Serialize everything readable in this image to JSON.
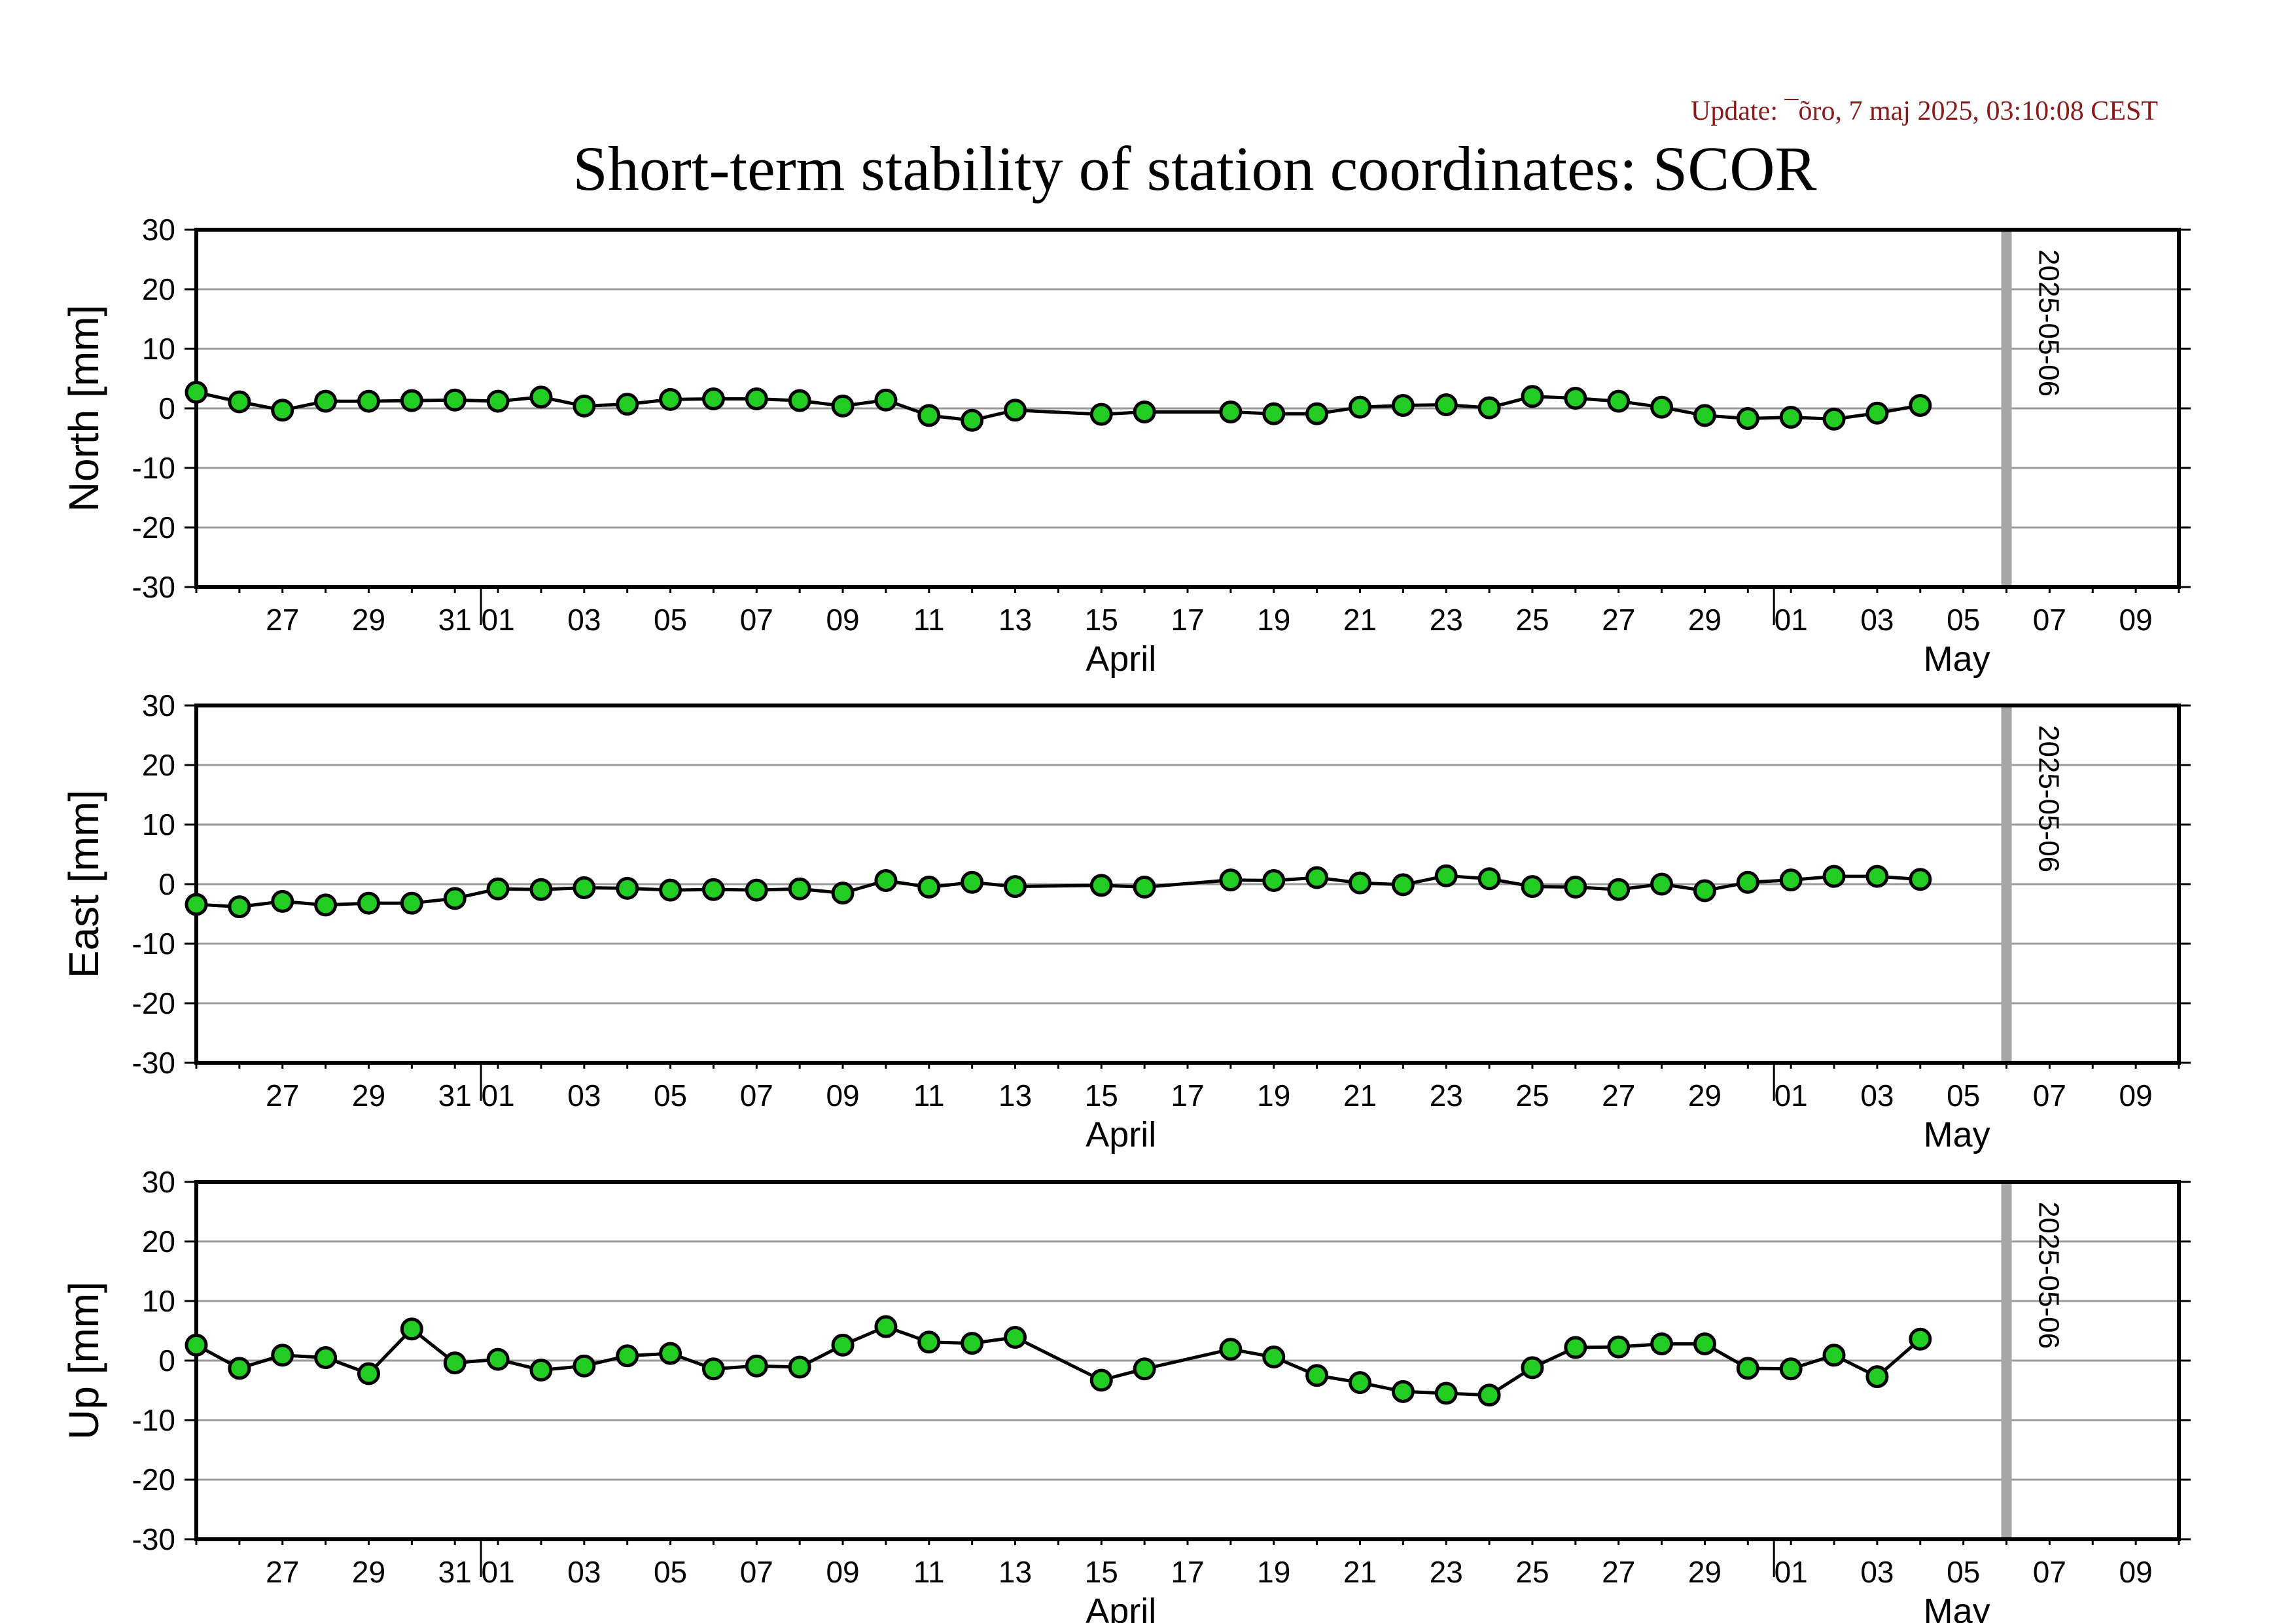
{
  "header": {
    "update_text": "Update: ¯õro, 7 maj 2025, 03:10:08 CEST",
    "title": "Short-term stability of station coordinates: SCOR"
  },
  "colors": {
    "marker_fill": "#22cc22",
    "marker_edge": "#000000",
    "line": "#000000",
    "grid": "#9a9a9a",
    "vline": "#a6a6a6",
    "update_text": "#8b1a1a"
  },
  "axis": {
    "ylim": [
      -30,
      30
    ],
    "yticks": [
      "30",
      "20",
      "10",
      "0",
      "-10",
      "-20",
      "-30"
    ],
    "xlim": [
      "2025-03-25",
      "2025-05-10"
    ],
    "day_ticks": [
      {
        "date": "2025-03-27",
        "label": "27"
      },
      {
        "date": "2025-03-29",
        "label": "29"
      },
      {
        "date": "2025-03-31",
        "label": "31"
      },
      {
        "date": "2025-04-01",
        "label": "01"
      },
      {
        "date": "2025-04-03",
        "label": "03"
      },
      {
        "date": "2025-04-05",
        "label": "05"
      },
      {
        "date": "2025-04-07",
        "label": "07"
      },
      {
        "date": "2025-04-09",
        "label": "09"
      },
      {
        "date": "2025-04-11",
        "label": "11"
      },
      {
        "date": "2025-04-13",
        "label": "13"
      },
      {
        "date": "2025-04-15",
        "label": "15"
      },
      {
        "date": "2025-04-17",
        "label": "17"
      },
      {
        "date": "2025-04-19",
        "label": "19"
      },
      {
        "date": "2025-04-21",
        "label": "21"
      },
      {
        "date": "2025-04-23",
        "label": "23"
      },
      {
        "date": "2025-04-25",
        "label": "25"
      },
      {
        "date": "2025-04-27",
        "label": "27"
      },
      {
        "date": "2025-04-29",
        "label": "29"
      },
      {
        "date": "2025-05-01",
        "label": "01"
      },
      {
        "date": "2025-05-03",
        "label": "03"
      },
      {
        "date": "2025-05-05",
        "label": "05"
      },
      {
        "date": "2025-05-07",
        "label": "07"
      },
      {
        "date": "2025-05-09",
        "label": "09"
      }
    ],
    "month_boundaries": [
      "2025-04-01",
      "2025-05-01"
    ],
    "month_labels": [
      {
        "date": "2025-04-15",
        "label": "April"
      },
      {
        "date": "2025-05-05",
        "label": "May"
      }
    ],
    "marker_line": {
      "date": "2025-05-06",
      "label": "2025-05-06"
    }
  },
  "chart_data": [
    {
      "type": "line",
      "ylabel": "North [mm]",
      "ylim": [
        -30,
        30
      ],
      "grid": true,
      "x": [
        "2025-03-25",
        "2025-03-26",
        "2025-03-27",
        "2025-03-28",
        "2025-03-29",
        "2025-03-30",
        "2025-03-31",
        "2025-04-01",
        "2025-04-02",
        "2025-04-03",
        "2025-04-04",
        "2025-04-05",
        "2025-04-06",
        "2025-04-07",
        "2025-04-08",
        "2025-04-09",
        "2025-04-10",
        "2025-04-11",
        "2025-04-12",
        "2025-04-13",
        "2025-04-15",
        "2025-04-16",
        "2025-04-18",
        "2025-04-19",
        "2025-04-20",
        "2025-04-21",
        "2025-04-22",
        "2025-04-23",
        "2025-04-24",
        "2025-04-25",
        "2025-04-26",
        "2025-04-27",
        "2025-04-28",
        "2025-04-29",
        "2025-04-30",
        "2025-05-01",
        "2025-05-02",
        "2025-05-03",
        "2025-05-04"
      ],
      "values": [
        2.7,
        1.1,
        -0.3,
        1.2,
        1.2,
        1.3,
        1.4,
        1.2,
        1.9,
        0.4,
        0.7,
        1.5,
        1.6,
        1.6,
        1.3,
        0.4,
        1.4,
        -1.2,
        -2.0,
        -0.3,
        -1.0,
        -0.6,
        -0.6,
        -0.9,
        -0.9,
        0.2,
        0.5,
        0.6,
        0.1,
        2.0,
        1.7,
        1.2,
        0.2,
        -1.2,
        -1.7,
        -1.5,
        -1.8,
        -0.8,
        0.5
      ]
    },
    {
      "type": "line",
      "ylabel": "East [mm]",
      "ylim": [
        -30,
        30
      ],
      "grid": true,
      "x": [
        "2025-03-25",
        "2025-03-26",
        "2025-03-27",
        "2025-03-28",
        "2025-03-29",
        "2025-03-30",
        "2025-03-31",
        "2025-04-01",
        "2025-04-02",
        "2025-04-03",
        "2025-04-04",
        "2025-04-05",
        "2025-04-06",
        "2025-04-07",
        "2025-04-08",
        "2025-04-09",
        "2025-04-10",
        "2025-04-11",
        "2025-04-12",
        "2025-04-13",
        "2025-04-15",
        "2025-04-16",
        "2025-04-18",
        "2025-04-19",
        "2025-04-20",
        "2025-04-21",
        "2025-04-22",
        "2025-04-23",
        "2025-04-24",
        "2025-04-25",
        "2025-04-26",
        "2025-04-27",
        "2025-04-28",
        "2025-04-29",
        "2025-04-30",
        "2025-05-01",
        "2025-05-02",
        "2025-05-03",
        "2025-05-04"
      ],
      "values": [
        -3.4,
        -3.8,
        -2.9,
        -3.5,
        -3.2,
        -3.2,
        -2.4,
        -0.8,
        -0.9,
        -0.6,
        -0.7,
        -1.0,
        -0.9,
        -1.0,
        -0.8,
        -1.5,
        0.6,
        -0.5,
        0.3,
        -0.4,
        -0.2,
        -0.5,
        0.7,
        0.6,
        1.1,
        0.2,
        -0.1,
        1.4,
        0.9,
        -0.4,
        -0.5,
        -0.9,
        0.0,
        -1.1,
        0.3,
        0.7,
        1.3,
        1.3,
        0.8
      ]
    },
    {
      "type": "line",
      "ylabel": "Up [mm]",
      "ylim": [
        -30,
        30
      ],
      "grid": true,
      "x": [
        "2025-03-25",
        "2025-03-26",
        "2025-03-27",
        "2025-03-28",
        "2025-03-29",
        "2025-03-30",
        "2025-03-31",
        "2025-04-01",
        "2025-04-02",
        "2025-04-03",
        "2025-04-04",
        "2025-04-05",
        "2025-04-06",
        "2025-04-07",
        "2025-04-08",
        "2025-04-09",
        "2025-04-10",
        "2025-04-11",
        "2025-04-12",
        "2025-04-13",
        "2025-04-15",
        "2025-04-16",
        "2025-04-18",
        "2025-04-19",
        "2025-04-20",
        "2025-04-21",
        "2025-04-22",
        "2025-04-23",
        "2025-04-24",
        "2025-04-25",
        "2025-04-26",
        "2025-04-27",
        "2025-04-28",
        "2025-04-29",
        "2025-04-30",
        "2025-05-01",
        "2025-05-02",
        "2025-05-03",
        "2025-05-04"
      ],
      "values": [
        2.6,
        -1.3,
        0.9,
        0.5,
        -2.2,
        5.3,
        -0.4,
        0.2,
        -1.6,
        -0.9,
        0.8,
        1.2,
        -1.4,
        -0.9,
        -1.1,
        2.6,
        5.7,
        3.1,
        2.9,
        3.9,
        -3.3,
        -1.4,
        1.9,
        0.6,
        -2.5,
        -3.7,
        -5.2,
        -5.5,
        -5.8,
        -1.2,
        2.2,
        2.3,
        2.8,
        2.8,
        -1.3,
        -1.4,
        0.9,
        -2.7,
        3.6
      ]
    }
  ]
}
